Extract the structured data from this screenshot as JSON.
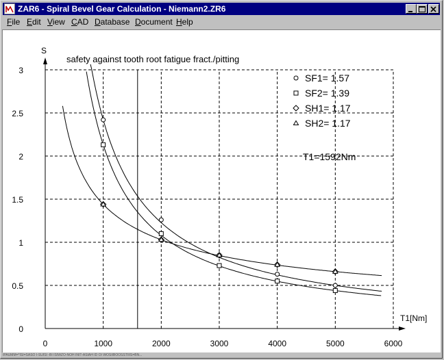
{
  "window": {
    "title": "ZAR6 - Spiral Bevel Gear Calculation  -  Niemann2.ZR6",
    "app_icon": "zar6-app-icon"
  },
  "menu": [
    {
      "label": "File",
      "key": "F",
      "rest": "ile"
    },
    {
      "label": "Edit",
      "key": "E",
      "rest": "dit"
    },
    {
      "label": "View",
      "key": "V",
      "rest": "iew"
    },
    {
      "label": "CAD",
      "key": "C",
      "rest": "AD"
    },
    {
      "label": "Database",
      "key": "D",
      "rest": "atabase"
    },
    {
      "label": "Document",
      "key": "D",
      "rest": "ocument"
    },
    {
      "label": "Help",
      "key": "H",
      "rest": "elp"
    }
  ],
  "chart_data": {
    "type": "line",
    "title": "safety against tooth root fatigue fract./pitting",
    "xlabel": "T1[Nm]",
    "ylabel": "S",
    "xlim": [
      0,
      6000
    ],
    "ylim": [
      0,
      3
    ],
    "xticks": [
      "0",
      "1000",
      "2000",
      "3000",
      "4000",
      "5000",
      "6000"
    ],
    "yticks": [
      "0",
      "0.5",
      "1",
      "1.5",
      "2",
      "2.5",
      "3"
    ],
    "grid": true,
    "marker_vline_x": 1592,
    "annotation": "T1=1592Nm",
    "legend_position": "top-right",
    "series": [
      {
        "name": "SF1= 1.57",
        "marker": "circle",
        "curve": "sf1",
        "x": [
          1000,
          2000,
          3000,
          4000,
          5000
        ],
        "y": [
          2.42,
          1.26,
          0.85,
          0.63,
          0.5
        ]
      },
      {
        "name": "SF2= 1.39",
        "marker": "square",
        "curve": "sf2",
        "x": [
          1000,
          2000,
          3000,
          4000,
          5000
        ],
        "y": [
          2.13,
          1.1,
          0.73,
          0.55,
          0.44
        ]
      },
      {
        "name": "SH1= 1.17",
        "marker": "diamond",
        "curve": "sh",
        "x": [
          1000,
          2000,
          3000,
          4000,
          5000
        ],
        "y": [
          1.44,
          1.03,
          0.85,
          0.74,
          0.66
        ]
      },
      {
        "name": "SH2= 1.17",
        "marker": "triangle",
        "curve": "sh",
        "x": [
          1000,
          2000,
          3000,
          4000,
          5000
        ],
        "y": [
          1.44,
          1.03,
          0.85,
          0.74,
          0.66
        ]
      }
    ]
  },
  "status": "IPAUMM=*ISI=SASO I-SUISI -BI ISIWZO-NOH INIT-ASIAH ID OI WOSIIBOOSSTIIIS=BN..."
}
